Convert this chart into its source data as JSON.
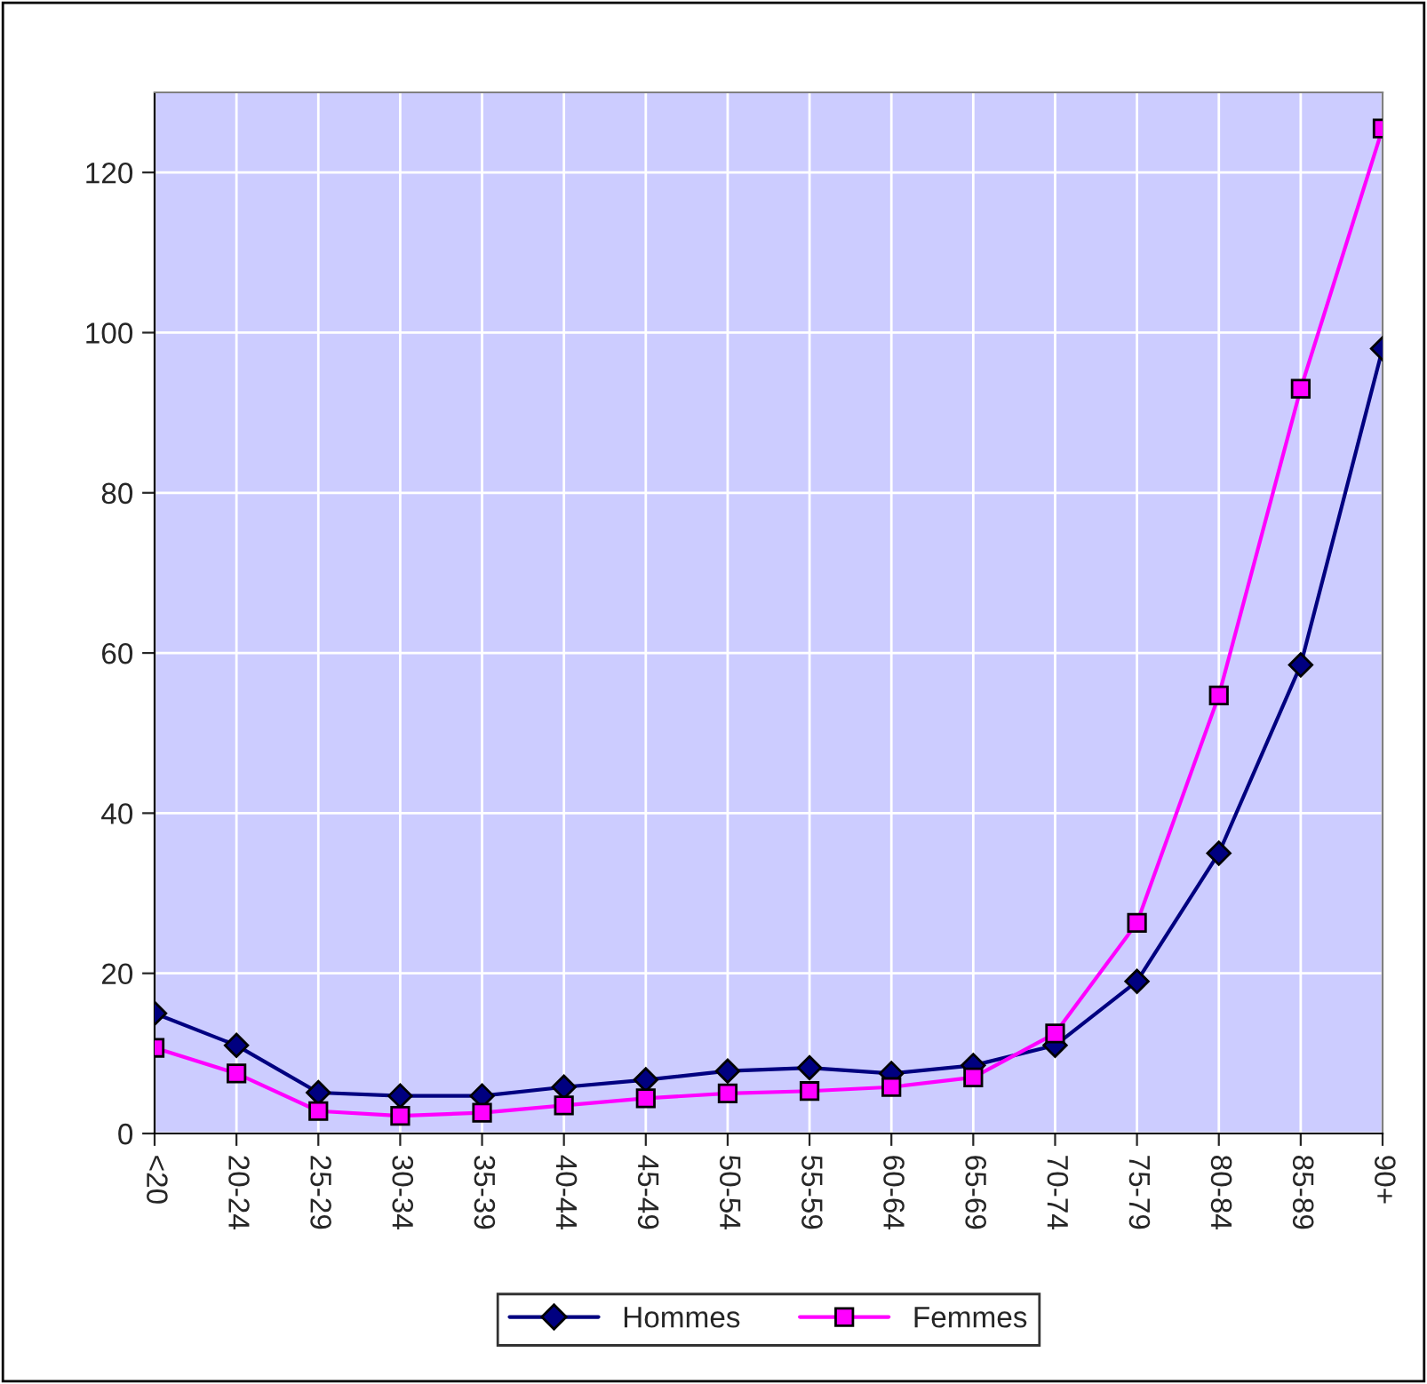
{
  "chart_data": {
    "type": "line",
    "categories": [
      "<20",
      "20-24",
      "25-29",
      "30-34",
      "35-39",
      "40-44",
      "45-49",
      "50-54",
      "55-59",
      "60-64",
      "65-69",
      "70-74",
      "75-79",
      "80-84",
      "85-89",
      "90+"
    ],
    "series": [
      {
        "name": "Hommes",
        "color": "#000080",
        "marker": "diamond",
        "values": [
          15,
          11,
          5.1,
          4.7,
          4.7,
          5.8,
          6.7,
          7.8,
          8.2,
          7.5,
          8.5,
          11,
          19,
          35,
          58.5,
          98
        ]
      },
      {
        "name": "Femmes",
        "color": "#ff00ff",
        "marker": "square",
        "values": [
          10.7,
          7.5,
          2.8,
          2.2,
          2.6,
          3.5,
          4.4,
          5,
          5.3,
          5.8,
          7,
          12.5,
          26.3,
          54.7,
          93,
          125.5
        ]
      }
    ],
    "ylim": [
      0,
      130
    ],
    "yticks": [
      0,
      20,
      40,
      60,
      80,
      100,
      120
    ],
    "grid": true,
    "legend": "bottom",
    "line_style": "solid"
  }
}
